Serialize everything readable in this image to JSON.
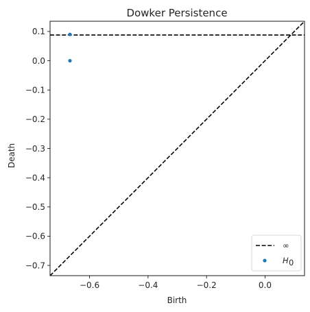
{
  "chart_data": {
    "type": "scatter",
    "title": "Dowker Persistence",
    "xlabel": "Birth",
    "ylabel": "Death",
    "xlim": [
      -0.735,
      0.135
    ],
    "ylim": [
      -0.735,
      0.135
    ],
    "xticks": [
      -0.6,
      -0.4,
      -0.2,
      0.0
    ],
    "xtick_labels": [
      "−0.6",
      "−0.4",
      "−0.2",
      "0.0"
    ],
    "yticks": [
      0.1,
      0.0,
      -0.1,
      -0.2,
      -0.3,
      -0.4,
      -0.5,
      -0.6,
      -0.7
    ],
    "ytick_labels": [
      "0.1",
      "0.0",
      "−0.1",
      "−0.2",
      "−0.3",
      "−0.4",
      "−0.5",
      "−0.6",
      "−0.7"
    ],
    "grid": false,
    "legend_position": "bottom-right",
    "lines": [
      {
        "name": "∞",
        "style": "dashed",
        "color": "#000000",
        "kind": "horizontal",
        "y": 0.088
      },
      {
        "name": "",
        "style": "dashed",
        "color": "#000000",
        "kind": "diagonal"
      }
    ],
    "series": [
      {
        "name": "H0",
        "legend_label": "H",
        "legend_subscript": "0",
        "color": "#1f77b4",
        "points": [
          {
            "x": -0.667,
            "y": 0.09
          },
          {
            "x": -0.667,
            "y": 0.0
          }
        ]
      }
    ]
  }
}
